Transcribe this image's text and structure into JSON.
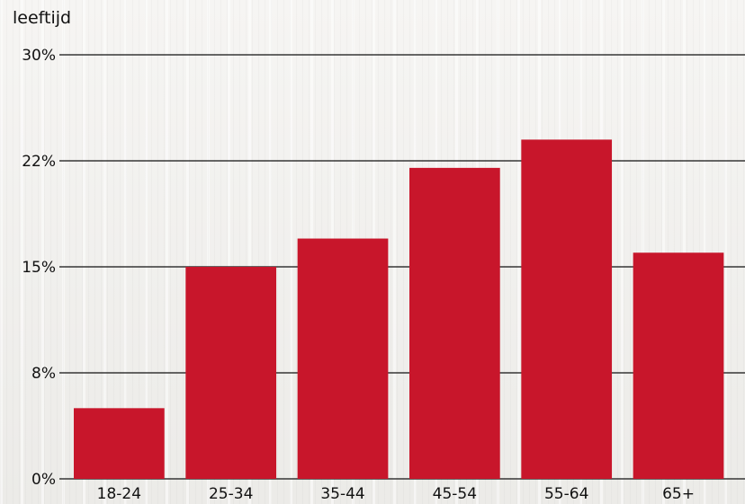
{
  "chart_data": {
    "type": "bar",
    "title": "leeftijd",
    "categories": [
      "18-24",
      "25-34",
      "35-44",
      "45-54",
      "55-64",
      "65+"
    ],
    "values": [
      5,
      15,
      17,
      22,
      24,
      16
    ],
    "ylim": [
      0,
      30
    ],
    "yticks": [
      0,
      7.5,
      15,
      22.5,
      30
    ],
    "ytick_labels": [
      "0%",
      "8%",
      "15%",
      "22%",
      "30%"
    ],
    "grid": true,
    "bar_color": "#c8162b"
  }
}
